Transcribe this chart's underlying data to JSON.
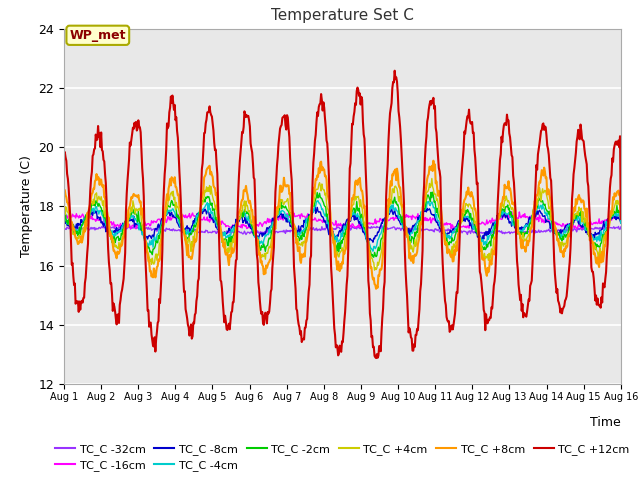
{
  "title": "Temperature Set C",
  "xlabel": "Time",
  "ylabel": "Temperature (C)",
  "ylim": [
    12,
    24
  ],
  "annotation": "WP_met",
  "series_order": [
    "TC_C -32cm",
    "TC_C -16cm",
    "TC_C -8cm",
    "TC_C -4cm",
    "TC_C -2cm",
    "TC_C +4cm",
    "TC_C +8cm",
    "TC_C +12cm"
  ],
  "series": {
    "TC_C -32cm": {
      "color": "#9933ff",
      "lw": 1.0
    },
    "TC_C -16cm": {
      "color": "#ff00ff",
      "lw": 1.0
    },
    "TC_C -8cm": {
      "color": "#0000cc",
      "lw": 1.0
    },
    "TC_C -4cm": {
      "color": "#00cccc",
      "lw": 1.0
    },
    "TC_C -2cm": {
      "color": "#00cc00",
      "lw": 1.0
    },
    "TC_C +4cm": {
      "color": "#cccc00",
      "lw": 1.0
    },
    "TC_C +8cm": {
      "color": "#ff9900",
      "lw": 1.5
    },
    "TC_C +12cm": {
      "color": "#cc0000",
      "lw": 1.5
    }
  },
  "bg_color": "#e8e8e8",
  "fig_bg": "#ffffff",
  "grid_color": "#ffffff",
  "n_points": 720,
  "days": 15
}
